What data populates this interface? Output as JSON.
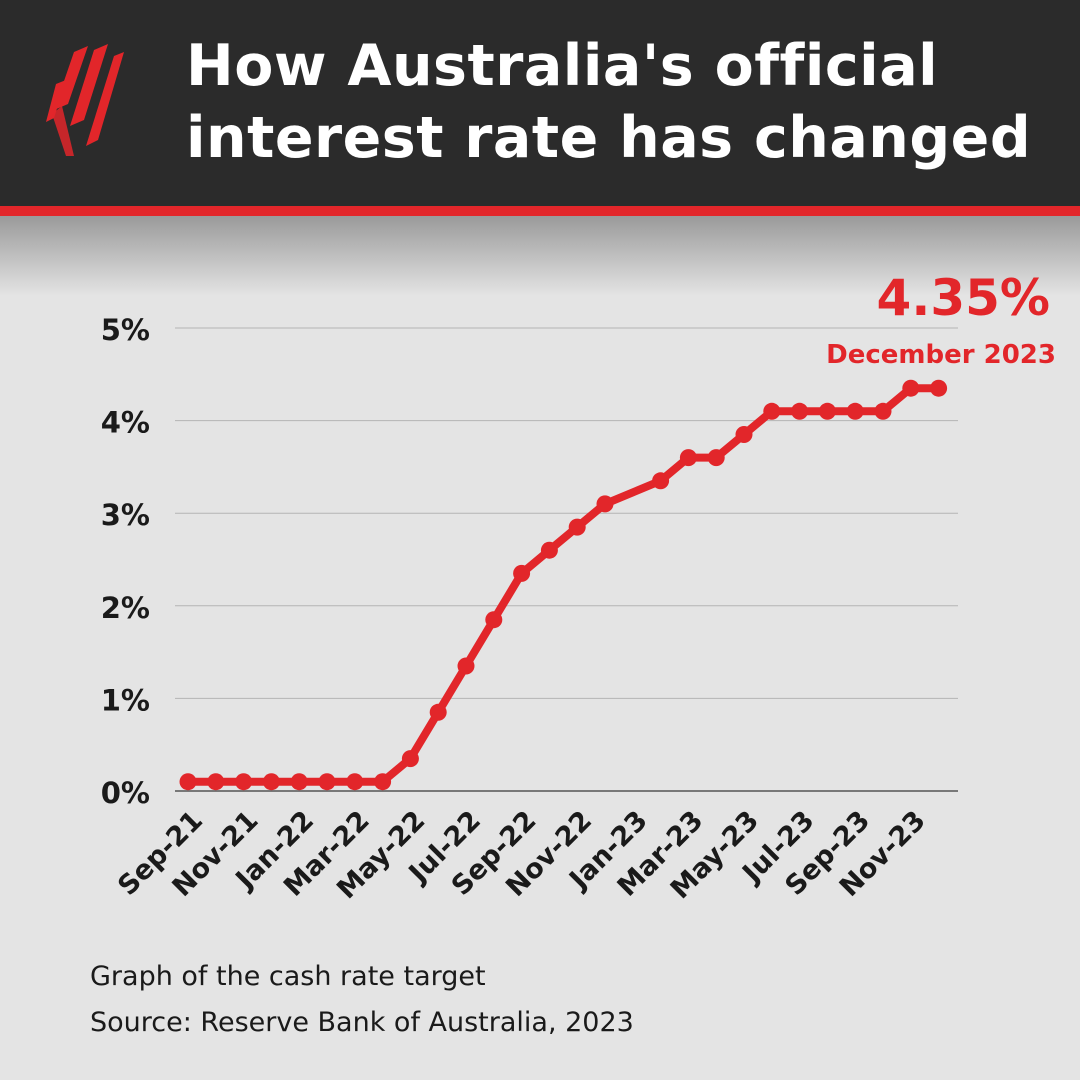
{
  "header": {
    "title_line1": "How Australia's official",
    "title_line2": "interest rate has changed",
    "logo_icon": "sbs-logo-icon",
    "background_color": "#2b2b2b",
    "accent_color": "#e2262a"
  },
  "callout": {
    "value": "4.35%",
    "label": "December 2023"
  },
  "caption": {
    "line1": "Graph of the cash rate target",
    "line2": "Source: Reserve Bank of Australia, 2023"
  },
  "chart_data": {
    "type": "line",
    "title": "",
    "xlabel": "",
    "ylabel": "",
    "ylim": [
      0,
      5
    ],
    "y_ticks": [
      0,
      1,
      2,
      3,
      4,
      5
    ],
    "y_tick_labels": [
      "0%",
      "1%",
      "2%",
      "3%",
      "4%",
      "5%"
    ],
    "x_tick_labels": [
      "Sep-21",
      "Nov-21",
      "Jan-22",
      "Mar-22",
      "May-22",
      "Jul-22",
      "Sep-22",
      "Nov-22",
      "Jan-23",
      "Mar-23",
      "May-23",
      "Jul-23",
      "Sep-23",
      "Nov-23"
    ],
    "grid": true,
    "line_color": "#e2262a",
    "series": [
      {
        "x": [
          "Sep-21",
          "Oct-21",
          "Nov-21",
          "Dec-21",
          "Jan-22",
          "Feb-22",
          "Mar-22",
          "Apr-22",
          "May-22",
          "Jun-22",
          "Jul-22",
          "Aug-22",
          "Sep-22",
          "Oct-22",
          "Nov-22",
          "Dec-22",
          "Feb-23",
          "Mar-23",
          "Apr-23",
          "May-23",
          "Jun-23",
          "Jul-23",
          "Aug-23",
          "Sep-23",
          "Oct-23",
          "Nov-23",
          "Dec-23"
        ],
        "values": [
          0.1,
          0.1,
          0.1,
          0.1,
          0.1,
          0.1,
          0.1,
          0.1,
          0.35,
          0.85,
          1.35,
          1.85,
          2.35,
          2.6,
          2.85,
          3.1,
          3.35,
          3.6,
          3.6,
          3.85,
          4.1,
          4.1,
          4.1,
          4.1,
          4.1,
          4.35,
          4.35
        ]
      }
    ]
  }
}
